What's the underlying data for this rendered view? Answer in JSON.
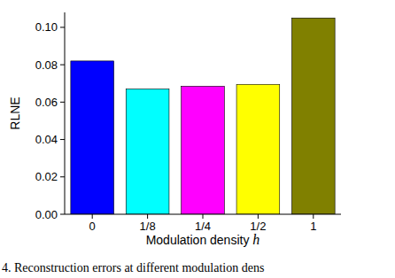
{
  "chart_data": {
    "type": "bar",
    "x_label": "Modulation density h",
    "y_label": "RLNE",
    "caption": "4. Reconstruction errors at different modulation dens",
    "categories": [
      "0",
      "1/8",
      "1/4",
      "1/2",
      "1"
    ],
    "values": [
      0.082,
      0.067,
      0.0685,
      0.0695,
      0.105
    ],
    "colors": [
      "#0000ff",
      "#00ffff",
      "#ff00ff",
      "#ffff00",
      "#808000"
    ],
    "ylim": [
      0,
      0.108
    ],
    "yticks": [
      {
        "value": 0,
        "label": "0.00"
      },
      {
        "value": 0.02,
        "label": "0.02"
      },
      {
        "value": 0.04,
        "label": "0.04"
      },
      {
        "value": 0.06,
        "label": "0.06"
      },
      {
        "value": 0.08,
        "label": "0.08"
      },
      {
        "value": 0.1,
        "label": "0.10"
      }
    ],
    "grid": false
  }
}
